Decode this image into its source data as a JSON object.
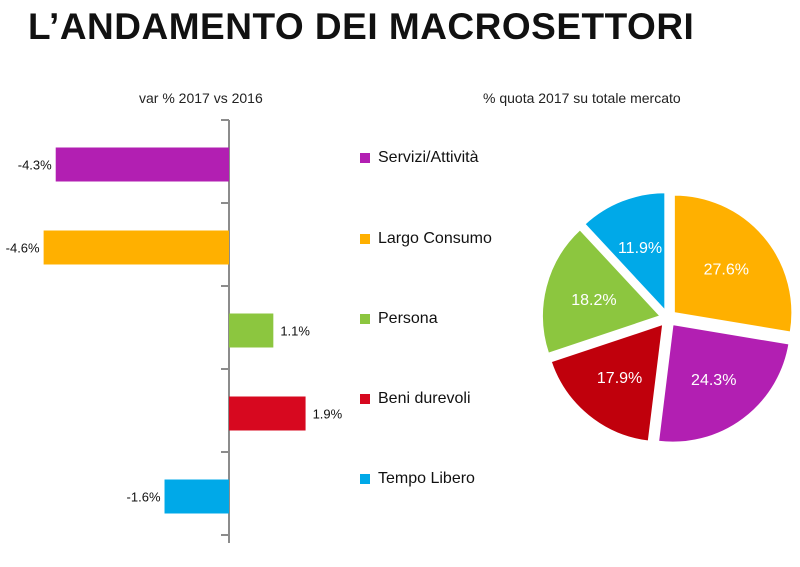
{
  "title": "L’ANDAMENTO DEI MACROSETTORI",
  "chart_data": [
    {
      "type": "bar",
      "orientation": "horizontal",
      "title": "var % 2017 vs 2016",
      "categories": [
        "Servizi/Attività",
        "Largo Consumo",
        "Persona",
        "Beni durevoli",
        "Tempo Libero"
      ],
      "values": [
        -4.3,
        -4.6,
        1.1,
        1.9,
        -1.6
      ],
      "value_labels": [
        "-4.3%",
        "-4.6%",
        "1.1%",
        "1.9%",
        "-1.6%"
      ],
      "colors": [
        "#b21fb2",
        "#ffb000",
        "#8cc63f",
        "#d7081f",
        "#00a9e8"
      ],
      "xlim": [
        -5.0,
        5.0
      ],
      "grid": false
    },
    {
      "type": "pie",
      "title": "% quota 2017 su totale mercato",
      "categories": [
        "Largo Consumo",
        "Servizi/Attività",
        "Beni durevoli",
        "Persona",
        "Tempo Libero"
      ],
      "values": [
        27.6,
        24.3,
        17.9,
        18.2,
        11.9
      ],
      "value_labels": [
        "27.6%",
        "24.3%",
        "17.9%",
        "18.2%",
        "11.9%"
      ],
      "colors": [
        "#ffb000",
        "#b21fb2",
        "#c0000c",
        "#8cc63f",
        "#00a9e8"
      ],
      "exploded": true
    }
  ],
  "legend": {
    "items": [
      {
        "label": "Servizi/Attività",
        "color": "#b21fb2"
      },
      {
        "label": "Largo Consumo",
        "color": "#ffb000"
      },
      {
        "label": "Persona",
        "color": "#8cc63f"
      },
      {
        "label": "Beni durevoli",
        "color": "#d7081f"
      },
      {
        "label": "Tempo Libero",
        "color": "#00a9e8"
      }
    ]
  }
}
